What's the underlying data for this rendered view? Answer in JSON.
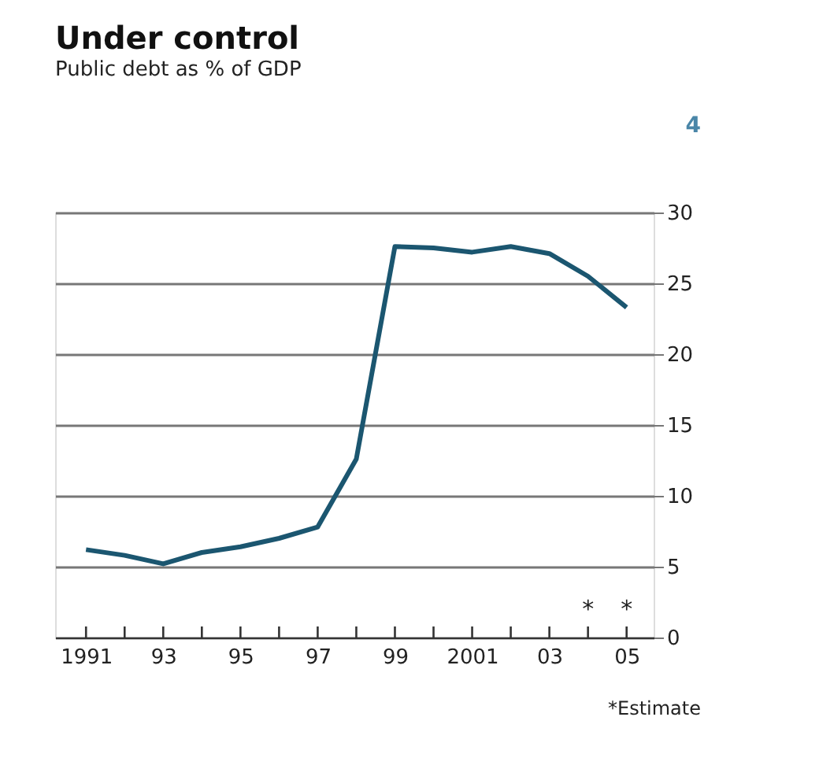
{
  "chart_data": {
    "type": "line",
    "title": "Under control",
    "subtitle": "Public debt as % of GDP",
    "x": [
      1991,
      1992,
      1993,
      1994,
      1995,
      1996,
      1997,
      1998,
      1999,
      2000,
      2001,
      2002,
      2003,
      2004,
      2005
    ],
    "series": [
      {
        "color": "#1b5670",
        "values": [
          6.2,
          5.8,
          5.2,
          6.0,
          6.4,
          7.0,
          7.8,
          12.6,
          27.6,
          27.5,
          27.2,
          27.6,
          27.1,
          25.5,
          23.3
        ]
      }
    ],
    "xlim": [
      1990.2,
      2005.7
    ],
    "xticks": [
      1991,
      {
        "value": 1992,
        "label": null
      },
      {
        "value": 1993,
        "label": "93"
      },
      {
        "value": 1994,
        "label": null
      },
      {
        "value": 1995,
        "label": "95"
      },
      {
        "value": 1996,
        "label": null
      },
      {
        "value": 1997,
        "label": "97"
      },
      {
        "value": 1998,
        "label": null
      },
      {
        "value": 1999,
        "label": "99"
      },
      {
        "value": 2000,
        "label": null
      },
      2001,
      {
        "value": 2002,
        "label": null
      },
      {
        "value": 2003,
        "label": "03"
      },
      {
        "value": 2004,
        "label": null
      },
      {
        "value": 2005,
        "label": "05"
      }
    ],
    "ylim": [
      0,
      30
    ],
    "yticks": [
      0,
      5,
      10,
      15,
      20,
      25,
      30
    ],
    "grid": "y",
    "marker": "none",
    "line_style": "solid",
    "legend": false,
    "annotations": [
      "*",
      "*",
      "*Estimate",
      "4"
    ]
  }
}
